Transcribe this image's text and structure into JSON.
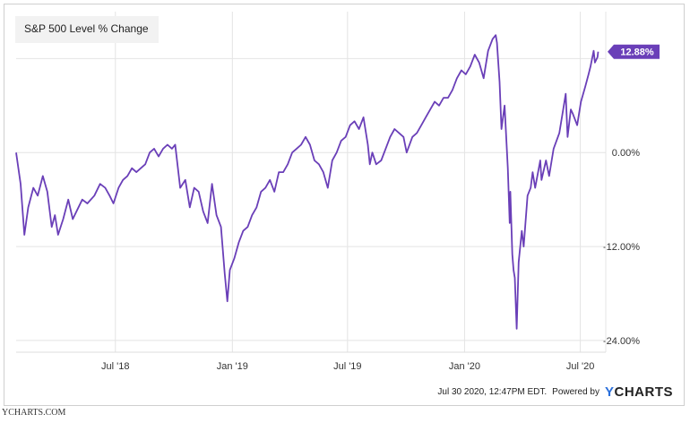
{
  "chart_data": {
    "type": "line",
    "title": "S&P 500 Level % Change",
    "x_tick_labels": [
      "Jul '18",
      "Jan '19",
      "Jul '19",
      "Jan '20",
      "Jul '20"
    ],
    "y_tick_labels": [
      "0.00%",
      "-12.00%",
      "-24.00%"
    ],
    "y_ticks": [
      0,
      -12,
      -24
    ],
    "ylim": [
      -25.5,
      18
    ],
    "grid": true,
    "series": [
      {
        "color": "#6a3fb8",
        "end_label": "12.88%",
        "points": [
          [
            "2018-01-26",
            0.0
          ],
          [
            "2018-02-02",
            -4.0
          ],
          [
            "2018-02-08",
            -10.5
          ],
          [
            "2018-02-14",
            -7.0
          ],
          [
            "2018-02-22",
            -4.5
          ],
          [
            "2018-03-01",
            -5.5
          ],
          [
            "2018-03-09",
            -3.0
          ],
          [
            "2018-03-16",
            -5.0
          ],
          [
            "2018-03-23",
            -9.5
          ],
          [
            "2018-03-28",
            -8.0
          ],
          [
            "2018-04-02",
            -10.5
          ],
          [
            "2018-04-10",
            -8.5
          ],
          [
            "2018-04-18",
            -6.0
          ],
          [
            "2018-04-25",
            -8.5
          ],
          [
            "2018-05-01",
            -7.5
          ],
          [
            "2018-05-10",
            -6.0
          ],
          [
            "2018-05-18",
            -6.5
          ],
          [
            "2018-05-29",
            -5.5
          ],
          [
            "2018-06-07",
            -4.0
          ],
          [
            "2018-06-15",
            -4.5
          ],
          [
            "2018-06-22",
            -5.5
          ],
          [
            "2018-06-28",
            -6.5
          ],
          [
            "2018-07-06",
            -4.5
          ],
          [
            "2018-07-13",
            -3.5
          ],
          [
            "2018-07-20",
            -3.0
          ],
          [
            "2018-07-27",
            -2.0
          ],
          [
            "2018-08-03",
            -2.5
          ],
          [
            "2018-08-10",
            -2.0
          ],
          [
            "2018-08-17",
            -1.5
          ],
          [
            "2018-08-24",
            0.0
          ],
          [
            "2018-08-31",
            0.5
          ],
          [
            "2018-09-07",
            -0.5
          ],
          [
            "2018-09-14",
            0.5
          ],
          [
            "2018-09-21",
            1.0
          ],
          [
            "2018-09-28",
            0.5
          ],
          [
            "2018-10-03",
            1.0
          ],
          [
            "2018-10-11",
            -4.5
          ],
          [
            "2018-10-19",
            -3.5
          ],
          [
            "2018-10-26",
            -7.0
          ],
          [
            "2018-11-02",
            -4.5
          ],
          [
            "2018-11-09",
            -5.0
          ],
          [
            "2018-11-16",
            -7.5
          ],
          [
            "2018-11-23",
            -9.0
          ],
          [
            "2018-11-30",
            -4.0
          ],
          [
            "2018-12-07",
            -8.0
          ],
          [
            "2018-12-14",
            -9.5
          ],
          [
            "2018-12-20",
            -15.5
          ],
          [
            "2018-12-24",
            -19.0
          ],
          [
            "2018-12-28",
            -15.0
          ],
          [
            "2019-01-04",
            -13.5
          ],
          [
            "2019-01-11",
            -11.5
          ],
          [
            "2019-01-18",
            -10.0
          ],
          [
            "2019-01-25",
            -9.5
          ],
          [
            "2019-02-01",
            -8.0
          ],
          [
            "2019-02-08",
            -7.0
          ],
          [
            "2019-02-15",
            -5.0
          ],
          [
            "2019-02-22",
            -4.5
          ],
          [
            "2019-03-01",
            -3.5
          ],
          [
            "2019-03-08",
            -5.0
          ],
          [
            "2019-03-15",
            -2.5
          ],
          [
            "2019-03-22",
            -2.5
          ],
          [
            "2019-03-29",
            -1.5
          ],
          [
            "2019-04-05",
            0.0
          ],
          [
            "2019-04-12",
            0.5
          ],
          [
            "2019-04-19",
            1.0
          ],
          [
            "2019-04-26",
            2.0
          ],
          [
            "2019-05-03",
            1.0
          ],
          [
            "2019-05-10",
            -1.0
          ],
          [
            "2019-05-17",
            -1.5
          ],
          [
            "2019-05-24",
            -2.5
          ],
          [
            "2019-05-31",
            -4.5
          ],
          [
            "2019-06-07",
            -1.0
          ],
          [
            "2019-06-14",
            0.0
          ],
          [
            "2019-06-21",
            1.5
          ],
          [
            "2019-06-28",
            2.0
          ],
          [
            "2019-07-05",
            3.5
          ],
          [
            "2019-07-12",
            4.0
          ],
          [
            "2019-07-19",
            3.0
          ],
          [
            "2019-07-26",
            4.5
          ],
          [
            "2019-08-02",
            1.0
          ],
          [
            "2019-08-05",
            -1.5
          ],
          [
            "2019-08-09",
            0.0
          ],
          [
            "2019-08-15",
            -1.5
          ],
          [
            "2019-08-23",
            -1.0
          ],
          [
            "2019-08-30",
            0.5
          ],
          [
            "2019-09-06",
            2.0
          ],
          [
            "2019-09-13",
            3.0
          ],
          [
            "2019-09-20",
            2.5
          ],
          [
            "2019-09-27",
            2.0
          ],
          [
            "2019-10-02",
            0.0
          ],
          [
            "2019-10-11",
            2.0
          ],
          [
            "2019-10-18",
            2.5
          ],
          [
            "2019-10-25",
            3.5
          ],
          [
            "2019-11-01",
            4.5
          ],
          [
            "2019-11-08",
            5.5
          ],
          [
            "2019-11-15",
            6.5
          ],
          [
            "2019-11-22",
            6.0
          ],
          [
            "2019-11-29",
            7.0
          ],
          [
            "2019-12-06",
            7.0
          ],
          [
            "2019-12-13",
            8.0
          ],
          [
            "2019-12-20",
            9.5
          ],
          [
            "2019-12-27",
            10.5
          ],
          [
            "2020-01-03",
            10.0
          ],
          [
            "2020-01-10",
            11.0
          ],
          [
            "2020-01-17",
            12.5
          ],
          [
            "2020-01-24",
            11.5
          ],
          [
            "2020-01-31",
            9.5
          ],
          [
            "2020-02-07",
            13.0
          ],
          [
            "2020-02-14",
            14.5
          ],
          [
            "2020-02-19",
            15.0
          ],
          [
            "2020-02-21",
            14.0
          ],
          [
            "2020-02-25",
            9.0
          ],
          [
            "2020-02-28",
            3.0
          ],
          [
            "2020-03-04",
            6.0
          ],
          [
            "2020-03-09",
            -2.0
          ],
          [
            "2020-03-12",
            -9.0
          ],
          [
            "2020-03-13",
            -5.0
          ],
          [
            "2020-03-16",
            -13.0
          ],
          [
            "2020-03-18",
            -15.0
          ],
          [
            "2020-03-20",
            -16.0
          ],
          [
            "2020-03-23",
            -22.5
          ],
          [
            "2020-03-26",
            -14.0
          ],
          [
            "2020-03-31",
            -10.0
          ],
          [
            "2020-04-03",
            -12.0
          ],
          [
            "2020-04-09",
            -5.5
          ],
          [
            "2020-04-14",
            -4.5
          ],
          [
            "2020-04-17",
            -2.5
          ],
          [
            "2020-04-21",
            -4.5
          ],
          [
            "2020-04-29",
            -1.0
          ],
          [
            "2020-05-01",
            -3.5
          ],
          [
            "2020-05-08",
            -1.0
          ],
          [
            "2020-05-13",
            -3.0
          ],
          [
            "2020-05-20",
            0.5
          ],
          [
            "2020-05-29",
            2.5
          ],
          [
            "2020-06-05",
            6.0
          ],
          [
            "2020-06-08",
            7.5
          ],
          [
            "2020-06-11",
            2.0
          ],
          [
            "2020-06-16",
            5.5
          ],
          [
            "2020-06-19",
            5.0
          ],
          [
            "2020-06-26",
            3.5
          ],
          [
            "2020-07-02",
            6.5
          ],
          [
            "2020-07-09",
            8.5
          ],
          [
            "2020-07-14",
            10.0
          ],
          [
            "2020-07-17",
            11.0
          ],
          [
            "2020-07-22",
            13.0
          ],
          [
            "2020-07-24",
            11.5
          ],
          [
            "2020-07-28",
            12.2
          ],
          [
            "2020-07-29",
            12.88
          ]
        ]
      }
    ]
  },
  "footer": {
    "timestamp": "Jul 30 2020, 12:47PM EDT.",
    "powered_by": "Powered by",
    "brand_mark": "Y",
    "brand_text": "CHARTS"
  },
  "watermark": "YCHARTS.COM"
}
